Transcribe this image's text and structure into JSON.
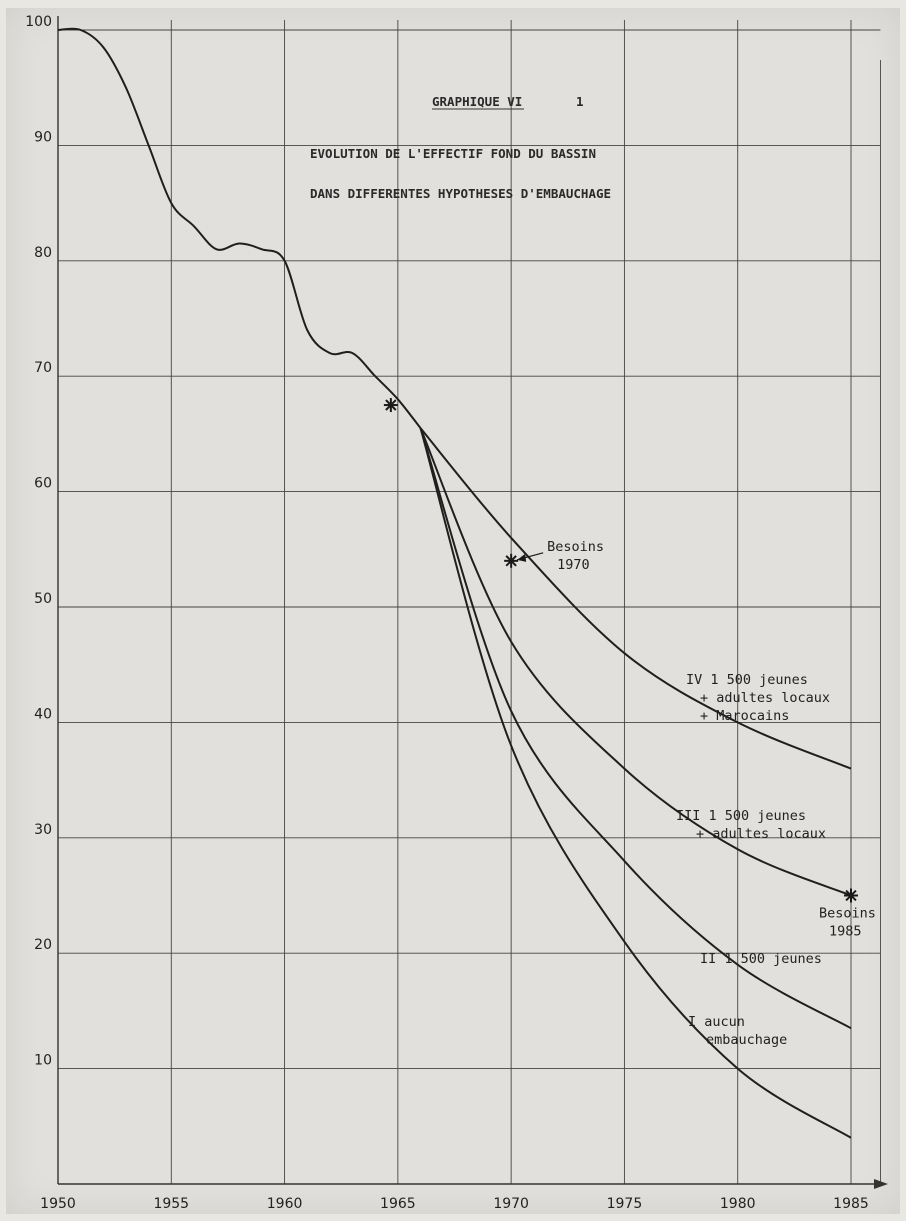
{
  "chart_data": {
    "type": "line",
    "title_line1": "GRAPHIQUE VI",
    "title_num": "1",
    "title_line2": "EVOLUTION DE L'EFFECTIF FOND DU BASSIN",
    "title_line3": "DANS DIFFERENTES HYPOTHESES D'EMBAUCHAGE",
    "xlabel": "",
    "ylabel": "",
    "xlim": [
      1950,
      1986.5
    ],
    "ylim": [
      0,
      100
    ],
    "x_ticks": [
      1950,
      1955,
      1960,
      1965,
      1970,
      1975,
      1980,
      1985
    ],
    "y_ticks": [
      10,
      20,
      30,
      40,
      50,
      60,
      70,
      80,
      90,
      100
    ],
    "grid": true,
    "historical": {
      "x": [
        1950,
        1951,
        1952,
        1953,
        1954,
        1955,
        1956,
        1957,
        1958,
        1959,
        1960,
        1961,
        1962,
        1963,
        1964,
        1965,
        1966
      ],
      "y": [
        100,
        100,
        98.5,
        95,
        90,
        85,
        83,
        81,
        81.5,
        81,
        80,
        74,
        72,
        72,
        70,
        68,
        65.5
      ]
    },
    "series": [
      {
        "name": "IV",
        "label_lines": [
          "IV  1 500 jeunes",
          "+ adultes locaux",
          "+ Marocains"
        ],
        "x": [
          1966,
          1970,
          1975,
          1980,
          1985
        ],
        "y": [
          65.5,
          56,
          46,
          40,
          36
        ]
      },
      {
        "name": "III",
        "label_lines": [
          "III  1 500 jeunes",
          "+ adultes locaux"
        ],
        "x": [
          1966,
          1970,
          1975,
          1980,
          1985
        ],
        "y": [
          65.5,
          47,
          36,
          29,
          25
        ]
      },
      {
        "name": "II",
        "label_lines": [
          "II 1 500 jeunes"
        ],
        "x": [
          1966,
          1970,
          1975,
          1980,
          1985
        ],
        "y": [
          65.5,
          41,
          28,
          19,
          13.5
        ]
      },
      {
        "name": "I",
        "label_lines": [
          "I  aucun",
          "embauchage"
        ],
        "x": [
          1966,
          1970,
          1975,
          1980,
          1985
        ],
        "y": [
          65.5,
          38,
          21,
          10,
          4
        ]
      }
    ],
    "markers": [
      {
        "x": 1965,
        "y": 67.5,
        "label_lines": []
      },
      {
        "x": 1970,
        "y": 54,
        "label_lines": [
          "Besoins",
          "1970"
        ]
      },
      {
        "x": 1985,
        "y": 25,
        "label_lines": [
          "Besoins",
          "1985"
        ]
      }
    ]
  }
}
